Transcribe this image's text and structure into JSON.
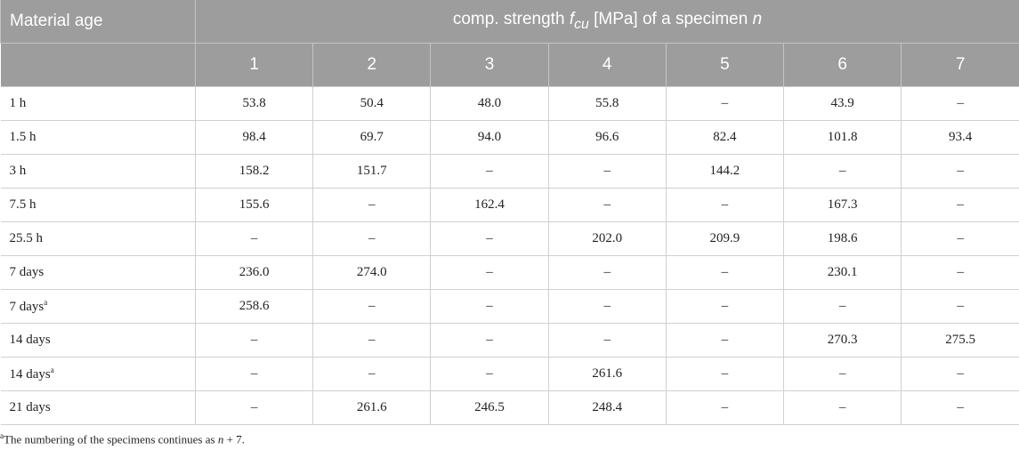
{
  "table": {
    "header": {
      "row_label": "Material age",
      "title_parts": [
        "comp. strength ",
        "f",
        "cu",
        " [MPa] of a specimen ",
        "n"
      ],
      "columns": [
        "1",
        "2",
        "3",
        "4",
        "5",
        "6",
        "7"
      ]
    },
    "rows": [
      {
        "label": "1 h",
        "cells": [
          "53.8",
          "50.4",
          "48.0",
          "55.8",
          "–",
          "43.9",
          "–"
        ]
      },
      {
        "label": "1.5 h",
        "cells": [
          "98.4",
          "69.7",
          "94.0",
          "96.6",
          "82.4",
          "101.8",
          "93.4"
        ]
      },
      {
        "label": "3 h",
        "cells": [
          "158.2",
          "151.7",
          "–",
          "–",
          "144.2",
          "–",
          "–"
        ]
      },
      {
        "label": "7.5 h",
        "cells": [
          "155.6",
          "–",
          "162.4",
          "–",
          "–",
          "167.3",
          "–"
        ]
      },
      {
        "label": "25.5 h",
        "cells": [
          "–",
          "–",
          "–",
          "202.0",
          "209.9",
          "198.6",
          "–"
        ]
      },
      {
        "label": "7 days",
        "cells": [
          "236.0",
          "274.0",
          "–",
          "–",
          "–",
          "230.1",
          "–"
        ]
      },
      {
        "label": "7 days",
        "note": "a",
        "cells": [
          "258.6",
          "–",
          "–",
          "–",
          "–",
          "–",
          "–"
        ]
      },
      {
        "label": "14 days",
        "cells": [
          "–",
          "–",
          "–",
          "–",
          "–",
          "270.3",
          "275.5"
        ]
      },
      {
        "label": "14 days",
        "note": "a",
        "cells": [
          "–",
          "–",
          "–",
          "261.6",
          "–",
          "–",
          "–"
        ]
      },
      {
        "label": "21 days",
        "cells": [
          "–",
          "261.6",
          "246.5",
          "248.4",
          "–",
          "–",
          "–"
        ]
      }
    ],
    "footnote": {
      "mark": "a",
      "parts": [
        "The numbering of the specimens continues as ",
        "n",
        " + 7."
      ]
    }
  }
}
